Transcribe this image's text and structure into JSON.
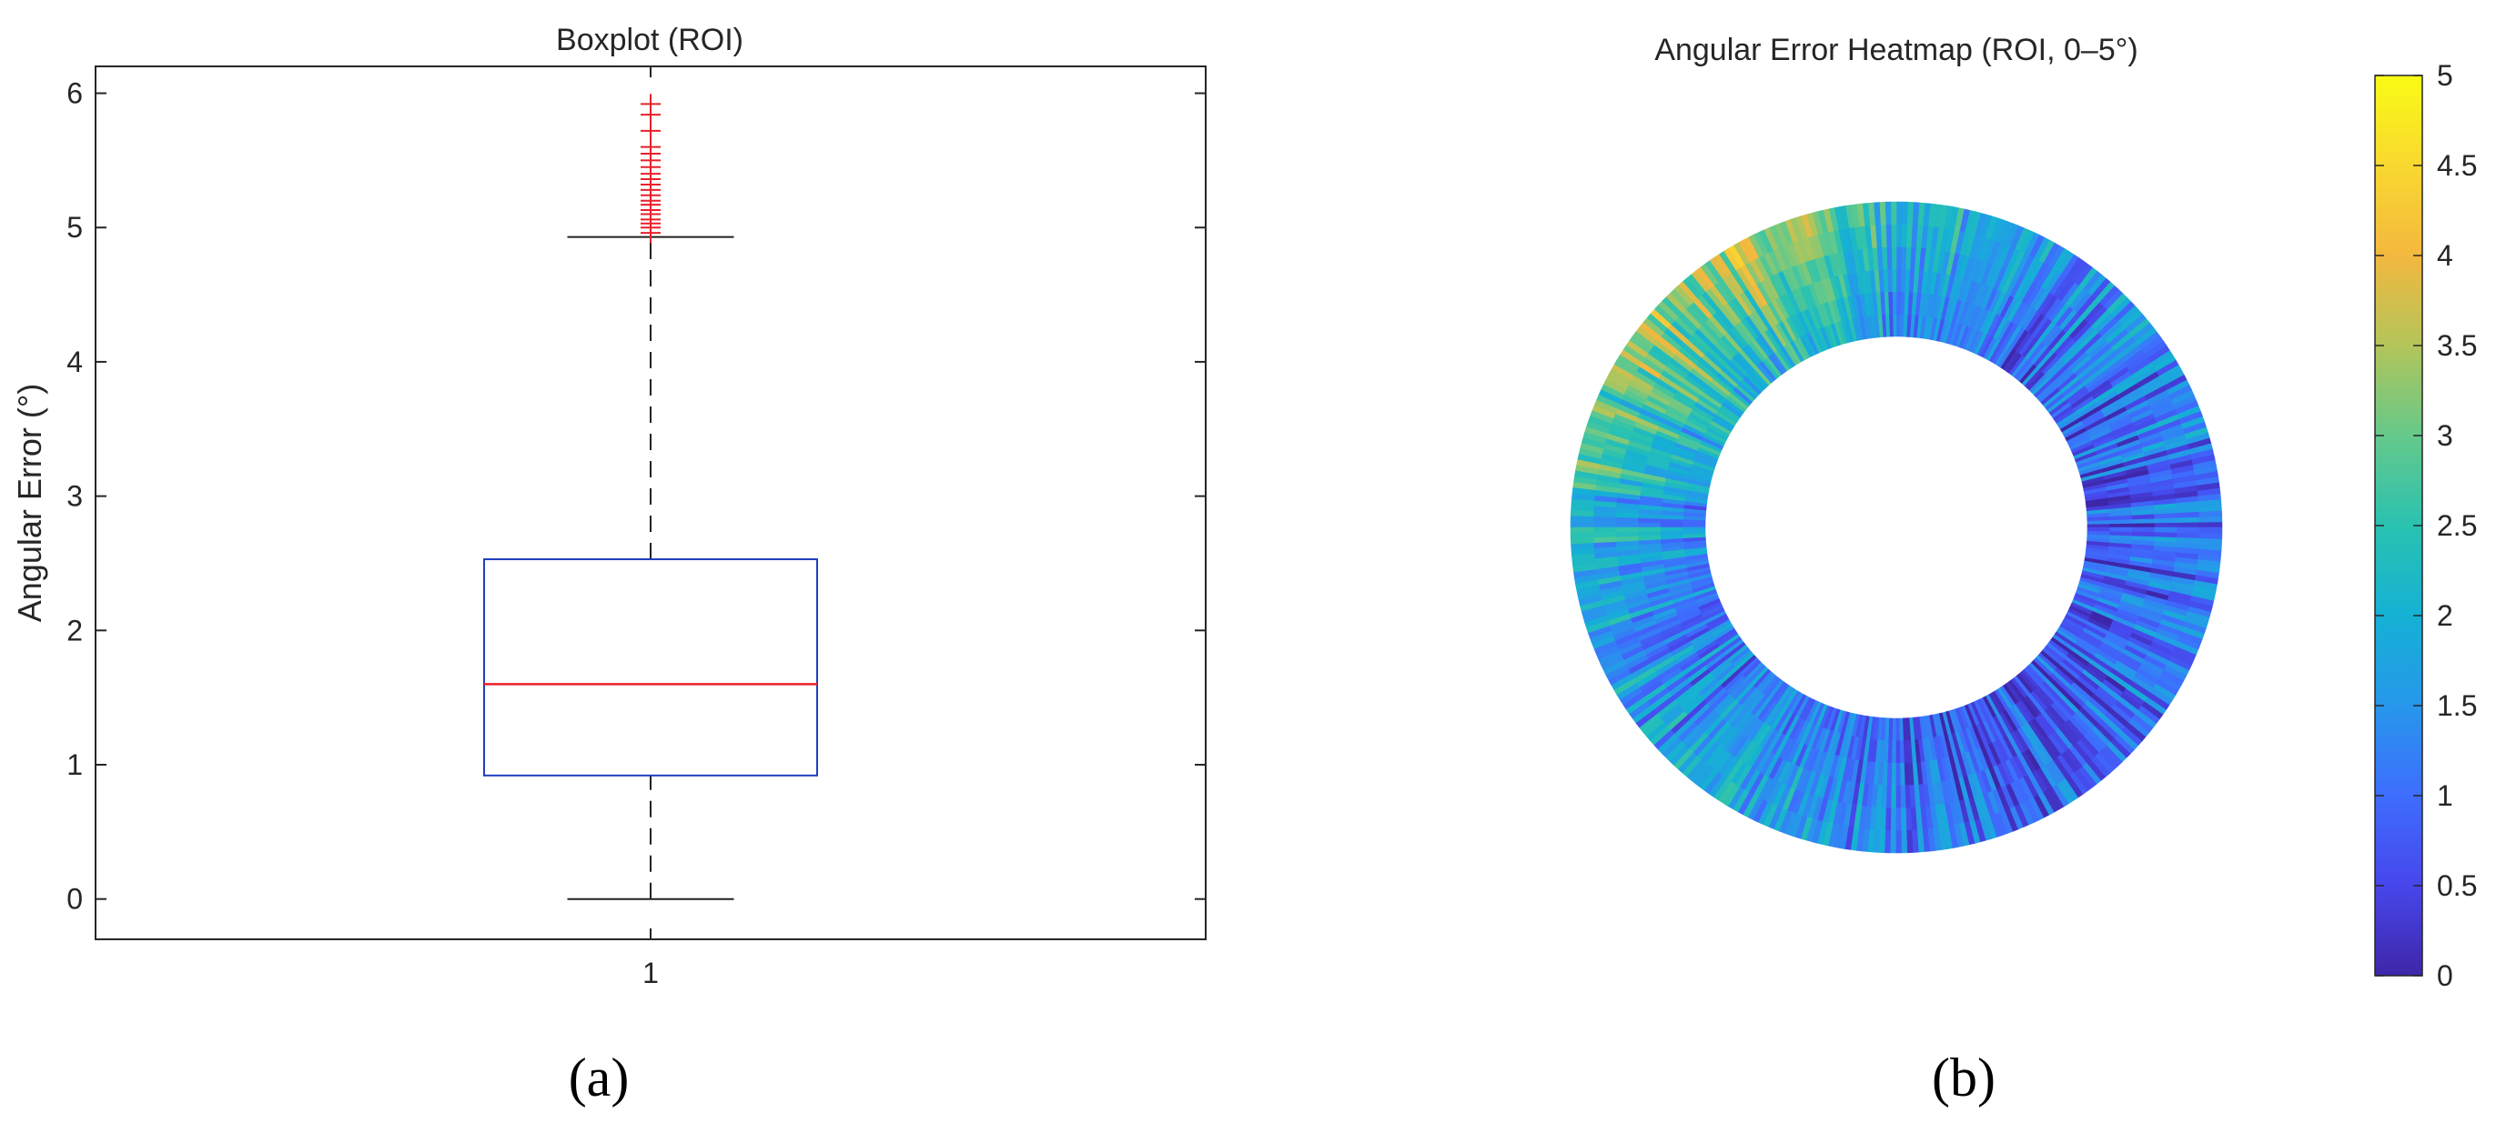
{
  "figure": {
    "captions": [
      "(a)",
      "(b)"
    ]
  },
  "chart_data": [
    {
      "type": "box",
      "title": "Boxplot (ROI)",
      "xlabel": "",
      "ylabel": "Angular Error (°)",
      "categories": [
        "1"
      ],
      "x_ticks": [
        "1"
      ],
      "y_ticks": [
        0,
        1,
        2,
        3,
        4,
        5,
        6
      ],
      "ylim": [
        -0.3,
        6.2
      ],
      "xlim": [
        0.5,
        1.5
      ],
      "box": {
        "min": 0.0,
        "q1": 0.92,
        "median": 1.6,
        "q3": 2.53,
        "max": 4.93,
        "outliers": [
          4.96,
          5.0,
          5.03,
          5.06,
          5.1,
          5.13,
          5.17,
          5.2,
          5.24,
          5.28,
          5.32,
          5.36,
          5.4,
          5.45,
          5.5,
          5.55,
          5.6,
          5.72,
          5.84,
          5.92
        ]
      },
      "colors": {
        "box": "#1f3fbf",
        "median": "#e8202a",
        "whisker": "#222222",
        "outlier": "#e8202a"
      },
      "grid": false
    },
    {
      "type": "heatmap",
      "title": "Angular Error Heatmap (ROI, 0–5°)",
      "shape": "annulus",
      "color_range": [
        0,
        5
      ],
      "colorbar_ticks": [
        "0",
        "0.5",
        "1",
        "1.5",
        "2",
        "2.5",
        "3",
        "3.5",
        "4",
        "4.5",
        "5"
      ],
      "colormap": [
        "#3e26a8",
        "#4746eb",
        "#3e6dfd",
        "#2797eb",
        "#15b1d4",
        "#2ac2b0",
        "#65c98a",
        "#b3c55a",
        "#f3b83f",
        "#f9d830",
        "#f9fb15"
      ],
      "sectors_deg": [
        {
          "from": 0,
          "to": 30,
          "value": 1.2
        },
        {
          "from": 30,
          "to": 60,
          "value": 1.4
        },
        {
          "from": 60,
          "to": 80,
          "value": 1.7
        },
        {
          "from": 80,
          "to": 100,
          "value": 2.2
        },
        {
          "from": 100,
          "to": 130,
          "value": 3.8
        },
        {
          "from": 130,
          "to": 160,
          "value": 3.3
        },
        {
          "from": 160,
          "to": 200,
          "value": 2.1
        },
        {
          "from": 200,
          "to": 230,
          "value": 1.6
        },
        {
          "from": 230,
          "to": 260,
          "value": 1.7
        },
        {
          "from": 260,
          "to": 300,
          "value": 1.0
        },
        {
          "from": 300,
          "to": 330,
          "value": 0.9
        },
        {
          "from": 330,
          "to": 360,
          "value": 1.1
        }
      ]
    }
  ]
}
